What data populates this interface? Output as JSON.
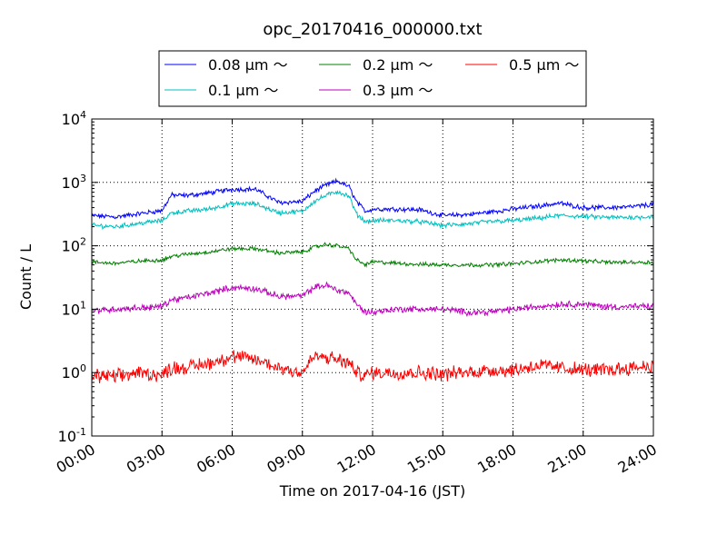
{
  "chart_data": {
    "type": "line",
    "title": "opc_20170416_000000.txt",
    "xlabel": "Time on 2017-04-16 (JST)",
    "ylabel": "Count / L",
    "yscale": "log",
    "xlim": [
      "00:00",
      "24:00"
    ],
    "ylim": [
      0.1,
      10000
    ],
    "grid": true,
    "legend_position": "top-center",
    "x_ticks": [
      "00:00",
      "03:00",
      "06:00",
      "09:00",
      "12:00",
      "15:00",
      "18:00",
      "21:00",
      "24:00"
    ],
    "y_ticks": [
      {
        "value": 0.1,
        "base": "10",
        "exp": "-1"
      },
      {
        "value": 1,
        "base": "10",
        "exp": "0"
      },
      {
        "value": 10,
        "base": "10",
        "exp": "1"
      },
      {
        "value": 100,
        "base": "10",
        "exp": "2"
      },
      {
        "value": 1000,
        "base": "10",
        "exp": "3"
      },
      {
        "value": 10000,
        "base": "10",
        "exp": "4"
      }
    ],
    "x_hours": [
      0,
      1,
      2,
      3,
      3.4,
      4,
      5,
      6,
      7,
      8,
      9,
      9.5,
      10,
      10.5,
      11,
      11.3,
      11.7,
      12,
      13,
      14,
      15,
      16,
      17,
      18,
      19,
      20,
      21,
      22,
      23,
      24
    ],
    "series": [
      {
        "name": "0.08 μm ～",
        "color": "#0000ff",
        "values": [
          300,
          285,
          320,
          360,
          630,
          620,
          680,
          780,
          780,
          480,
          500,
          720,
          900,
          1050,
          850,
          500,
          350,
          380,
          380,
          370,
          300,
          310,
          340,
          380,
          420,
          470,
          400,
          400,
          410,
          450
        ]
      },
      {
        "name": "0.1 μm ～",
        "color": "#00bfbf",
        "values": [
          210,
          200,
          225,
          250,
          330,
          350,
          380,
          460,
          460,
          330,
          350,
          500,
          620,
          720,
          600,
          320,
          240,
          250,
          250,
          240,
          210,
          220,
          240,
          250,
          270,
          300,
          290,
          280,
          280,
          290
        ]
      },
      {
        "name": "0.2 μm ～",
        "color": "#008000",
        "values": [
          55,
          53,
          57,
          60,
          68,
          73,
          80,
          90,
          90,
          77,
          80,
          95,
          105,
          100,
          90,
          60,
          50,
          56,
          53,
          51,
          50,
          50,
          50,
          52,
          56,
          60,
          58,
          55,
          55,
          55
        ]
      },
      {
        "name": "0.3 μm ～",
        "color": "#bf00bf",
        "values": [
          9.5,
          10,
          10.5,
          11,
          14,
          15,
          18,
          22,
          21,
          16,
          16,
          22,
          24,
          20,
          18,
          12,
          9,
          9,
          10,
          10,
          10,
          9,
          9,
          10,
          11,
          12,
          12,
          11,
          11,
          11
        ]
      },
      {
        "name": "0.5 μm ～",
        "color": "#ff0000",
        "values": [
          0.9,
          0.85,
          1.0,
          0.9,
          1.2,
          1.2,
          1.4,
          1.8,
          1.6,
          1.2,
          1.0,
          1.8,
          1.7,
          1.6,
          1.4,
          1.0,
          0.9,
          1.0,
          1.0,
          1.0,
          0.95,
          1.0,
          1.1,
          1.1,
          1.3,
          1.2,
          1.1,
          1.1,
          1.2,
          1.3
        ]
      }
    ],
    "legend_layout": [
      [
        "0.08 μm ～",
        "0.2 μm ～",
        "0.5 μm ～"
      ],
      [
        "0.1 μm ～",
        "0.3 μm ～"
      ]
    ]
  }
}
